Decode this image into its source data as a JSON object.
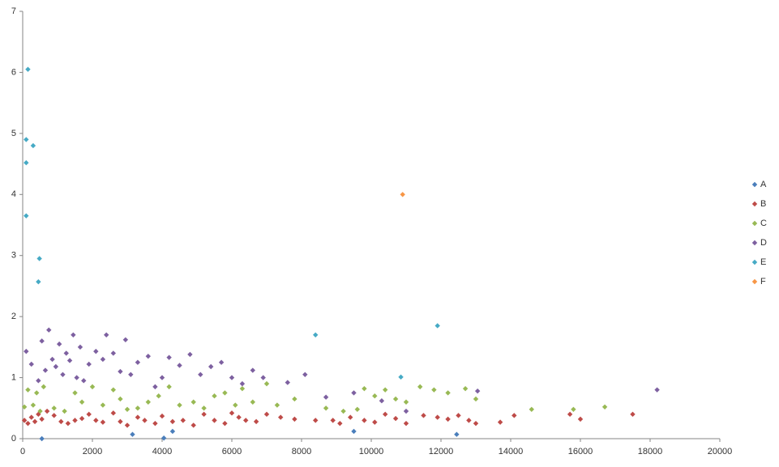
{
  "chart_data": {
    "type": "scatter",
    "xlim": [
      0,
      20000
    ],
    "xticks": [
      0,
      2000,
      4000,
      6000,
      8000,
      10000,
      12000,
      14000,
      16000,
      18000,
      20000
    ],
    "ylim": [
      0,
      7
    ],
    "yticks": [
      0,
      1,
      2,
      3,
      4,
      5,
      6,
      7
    ],
    "grid": false,
    "legend": "right",
    "series": [
      {
        "name": "A",
        "color": "#4a7ebb",
        "x": [
          550,
          3150,
          4050,
          4300,
          9500,
          12450
        ],
        "y": [
          0,
          0.07,
          0.01,
          0.12,
          0.12,
          0.07
        ]
      },
      {
        "name": "B",
        "color": "#be4b48",
        "x": [
          50,
          150,
          250,
          350,
          450,
          550,
          700,
          900,
          1100,
          1300,
          1500,
          1700,
          1900,
          2100,
          2300,
          2600,
          2800,
          3000,
          3300,
          3500,
          3800,
          4000,
          4300,
          4600,
          4900,
          5200,
          5500,
          5800,
          6000,
          6200,
          6400,
          6700,
          7000,
          7400,
          7800,
          8400,
          8900,
          9100,
          9400,
          9800,
          10100,
          10400,
          10700,
          11000,
          11500,
          11900,
          12200,
          12500,
          12800,
          13000,
          13700,
          14100,
          15700,
          16000,
          17500
        ],
        "y": [
          0.3,
          0.25,
          0.35,
          0.28,
          0.4,
          0.32,
          0.45,
          0.38,
          0.28,
          0.25,
          0.3,
          0.33,
          0.4,
          0.3,
          0.27,
          0.42,
          0.28,
          0.22,
          0.35,
          0.3,
          0.25,
          0.37,
          0.28,
          0.3,
          0.22,
          0.4,
          0.3,
          0.25,
          0.42,
          0.35,
          0.3,
          0.28,
          0.4,
          0.35,
          0.32,
          0.3,
          0.3,
          0.25,
          0.35,
          0.3,
          0.27,
          0.4,
          0.33,
          0.25,
          0.38,
          0.35,
          0.32,
          0.38,
          0.3,
          0.25,
          0.27,
          0.38,
          0.4,
          0.32,
          0.4
        ]
      },
      {
        "name": "C",
        "color": "#98b954",
        "x": [
          50,
          150,
          300,
          400,
          500,
          600,
          900,
          1200,
          1500,
          1700,
          2000,
          2300,
          2600,
          2800,
          3000,
          3300,
          3600,
          3900,
          4200,
          4500,
          4900,
          5200,
          5500,
          5800,
          6100,
          6300,
          6600,
          7000,
          7300,
          7800,
          8700,
          9200,
          9600,
          9800,
          10100,
          10400,
          10700,
          11000,
          11400,
          11800,
          12200,
          12700,
          13000,
          14600,
          15800,
          16700
        ],
        "y": [
          0.52,
          0.8,
          0.55,
          0.75,
          0.45,
          0.85,
          0.5,
          0.45,
          0.75,
          0.6,
          0.85,
          0.55,
          0.8,
          0.65,
          0.48,
          0.5,
          0.6,
          0.7,
          0.85,
          0.55,
          0.6,
          0.5,
          0.7,
          0.75,
          0.55,
          0.82,
          0.6,
          0.9,
          0.55,
          0.65,
          0.5,
          0.45,
          0.48,
          0.82,
          0.7,
          0.8,
          0.65,
          0.6,
          0.85,
          0.8,
          0.75,
          0.82,
          0.65,
          0.48,
          0.48,
          0.52
        ]
      },
      {
        "name": "D",
        "color": "#7d60a0",
        "x": [
          100,
          250,
          450,
          550,
          650,
          750,
          850,
          950,
          1050,
          1150,
          1250,
          1350,
          1450,
          1550,
          1650,
          1750,
          1900,
          2100,
          2300,
          2400,
          2600,
          2800,
          2950,
          3100,
          3300,
          3600,
          3800,
          4000,
          4200,
          4500,
          4800,
          5100,
          5400,
          5700,
          6000,
          6300,
          6600,
          6900,
          7600,
          8100,
          8700,
          9500,
          10300,
          11000,
          13050,
          18200
        ],
        "y": [
          1.43,
          1.22,
          0.95,
          1.6,
          1.12,
          1.78,
          1.3,
          1.18,
          1.55,
          1.05,
          1.4,
          1.28,
          1.7,
          1.0,
          1.5,
          0.95,
          1.22,
          1.43,
          1.3,
          1.7,
          1.4,
          1.1,
          1.62,
          1.05,
          1.25,
          1.35,
          0.85,
          1.0,
          1.33,
          1.2,
          1.38,
          1.05,
          1.18,
          1.25,
          1.0,
          0.9,
          1.12,
          1.0,
          0.92,
          1.05,
          0.68,
          0.75,
          0.62,
          0.45,
          0.78,
          0.8
        ]
      },
      {
        "name": "E",
        "color": "#46aac5",
        "x": [
          150,
          100,
          300,
          100,
          100,
          480,
          450,
          8400,
          11900,
          10850
        ],
        "y": [
          6.05,
          4.9,
          4.8,
          4.52,
          3.65,
          2.95,
          2.57,
          1.7,
          1.85,
          1.01
        ]
      },
      {
        "name": "F",
        "color": "#f79646",
        "x": [
          10900
        ],
        "y": [
          4.0
        ]
      }
    ]
  }
}
